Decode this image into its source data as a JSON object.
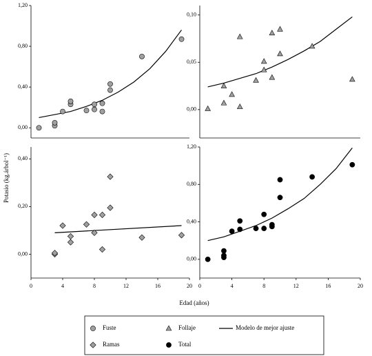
{
  "figure": {
    "ylabel": "Potasio (kg.árbol⁻¹)",
    "xlabel": "Edad (años)",
    "fit_label": "Modelo de mejor ajuste"
  },
  "chart_data": [
    {
      "type": "scatter",
      "xlim": [
        0,
        20
      ],
      "ylim": [
        -0.1,
        1.2
      ],
      "yticks": [
        {
          "value": 0,
          "label": "0,00"
        },
        {
          "value": 0.4,
          "label": "0,40"
        },
        {
          "value": 0.8,
          "label": "0,80"
        },
        {
          "value": 1.2,
          "label": "1,20"
        }
      ],
      "series": [
        {
          "name": "Fuste",
          "color": "#a0a0a0",
          "marker": "circle",
          "x": [
            1,
            3,
            3,
            4,
            5,
            5,
            7,
            8,
            8,
            9,
            9,
            10,
            10,
            14,
            19
          ],
          "values": [
            0.0,
            0.02,
            0.05,
            0.16,
            0.23,
            0.26,
            0.17,
            0.18,
            0.23,
            0.16,
            0.24,
            0.37,
            0.43,
            0.7,
            0.87
          ]
        }
      ],
      "fit": {
        "color": "#000000",
        "x": [
          1,
          3,
          5,
          7,
          9,
          11,
          13,
          15,
          17,
          19
        ],
        "values": [
          0.1,
          0.13,
          0.16,
          0.21,
          0.27,
          0.35,
          0.45,
          0.58,
          0.75,
          0.96
        ]
      }
    },
    {
      "type": "scatter",
      "xlim": [
        0,
        20
      ],
      "ylim": [
        -0.03,
        0.11
      ],
      "yticks": [
        {
          "value": 0,
          "label": "0,00"
        },
        {
          "value": 0.05,
          "label": "0,05"
        },
        {
          "value": 0.1,
          "label": "0,10"
        }
      ],
      "series": [
        {
          "name": "Follaje",
          "color": "#a0a0a0",
          "marker": "triangle",
          "x": [
            1,
            3,
            3,
            4,
            5,
            5,
            7,
            8,
            8,
            9,
            9,
            10,
            10,
            14,
            19
          ],
          "values": [
            0.001,
            0.007,
            0.025,
            0.016,
            0.003,
            0.077,
            0.031,
            0.042,
            0.051,
            0.034,
            0.081,
            0.059,
            0.085,
            0.067,
            0.032
          ]
        }
      ],
      "fit": {
        "color": "#000000",
        "x": [
          1,
          3,
          5,
          7,
          9,
          11,
          13,
          15,
          17,
          19
        ],
        "values": [
          0.024,
          0.028,
          0.033,
          0.038,
          0.045,
          0.053,
          0.062,
          0.072,
          0.085,
          0.098
        ]
      }
    },
    {
      "type": "scatter",
      "xlim": [
        0,
        20
      ],
      "ylim": [
        -0.1,
        0.45
      ],
      "xticks": [
        0,
        4,
        8,
        12,
        16,
        20
      ],
      "yticks": [
        {
          "value": 0,
          "label": "0,00"
        },
        {
          "value": 0.2,
          "label": "0,20"
        },
        {
          "value": 0.4,
          "label": "0,40"
        }
      ],
      "series": [
        {
          "name": "Ramas",
          "color": "#a0a0a0",
          "marker": "diamond",
          "x": [
            3,
            3,
            4,
            5,
            5,
            7,
            8,
            8,
            9,
            9,
            10,
            10,
            14,
            19
          ],
          "values": [
            0.0,
            0.005,
            0.12,
            0.05,
            0.075,
            0.125,
            0.09,
            0.165,
            0.02,
            0.165,
            0.195,
            0.325,
            0.07,
            0.08
          ]
        }
      ],
      "fit": {
        "color": "#000000",
        "x": [
          3,
          19
        ],
        "values": [
          0.09,
          0.12
        ]
      }
    },
    {
      "type": "scatter",
      "xlim": [
        0,
        20
      ],
      "ylim": [
        -0.2,
        1.2
      ],
      "xticks": [
        0,
        4,
        8,
        12,
        16,
        20
      ],
      "yticks": [
        {
          "value": 0,
          "label": "0,00"
        },
        {
          "value": 0.4,
          "label": "0,40"
        },
        {
          "value": 0.8,
          "label": "0,80"
        },
        {
          "value": 1.2,
          "label": "1,20"
        }
      ],
      "series": [
        {
          "name": "Total",
          "color": "#000000",
          "marker": "circle",
          "x": [
            1,
            3,
            3,
            3,
            4,
            5,
            5,
            7,
            8,
            8,
            9,
            9,
            10,
            10,
            14,
            19
          ],
          "values": [
            0.0,
            0.02,
            0.04,
            0.09,
            0.3,
            0.32,
            0.41,
            0.33,
            0.33,
            0.48,
            0.35,
            0.37,
            0.66,
            0.85,
            0.88,
            1.01
          ]
        }
      ],
      "fit": {
        "color": "#000000",
        "x": [
          1,
          3,
          5,
          7,
          9,
          11,
          13,
          15,
          17,
          19
        ],
        "values": [
          0.2,
          0.24,
          0.3,
          0.36,
          0.44,
          0.54,
          0.65,
          0.8,
          0.97,
          1.19
        ]
      }
    }
  ]
}
